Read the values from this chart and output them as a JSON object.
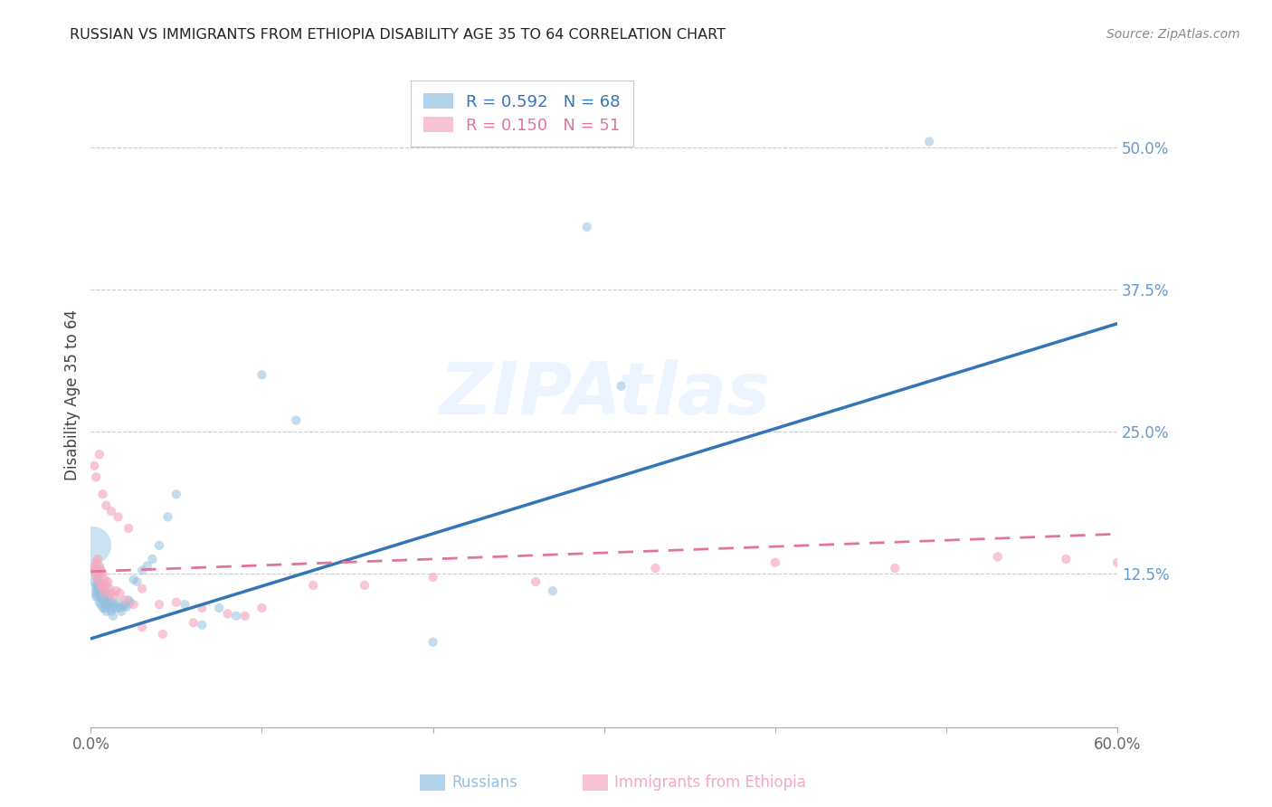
{
  "title": "RUSSIAN VS IMMIGRANTS FROM ETHIOPIA DISABILITY AGE 35 TO 64 CORRELATION CHART",
  "source": "Source: ZipAtlas.com",
  "ylabel": "Disability Age 35 to 64",
  "x_min": 0.0,
  "x_max": 0.6,
  "y_min": -0.01,
  "y_max": 0.575,
  "right_yticks": [
    0.125,
    0.25,
    0.375,
    0.5
  ],
  "right_yticklabels": [
    "12.5%",
    "25.0%",
    "37.5%",
    "50.0%"
  ],
  "bottom_xticks": [
    0.0,
    0.1,
    0.2,
    0.3,
    0.4,
    0.5,
    0.6
  ],
  "bottom_xticklabels": [
    "0.0%",
    "",
    "",
    "",
    "",
    "",
    "60.0%"
  ],
  "blue_legend_label": "R = 0.592   N = 68",
  "pink_legend_label": "R = 0.150   N = 51",
  "watermark": "ZIPAtlas",
  "blue_color": "#92c0e0",
  "pink_color": "#f5a8c0",
  "blue_line_color": "#3375b5",
  "pink_line_color": "#e07595",
  "russians_x": [
    0.001,
    0.002,
    0.002,
    0.003,
    0.003,
    0.003,
    0.003,
    0.004,
    0.004,
    0.004,
    0.004,
    0.005,
    0.005,
    0.005,
    0.005,
    0.005,
    0.006,
    0.006,
    0.006,
    0.006,
    0.007,
    0.007,
    0.007,
    0.007,
    0.008,
    0.008,
    0.008,
    0.009,
    0.009,
    0.009,
    0.01,
    0.01,
    0.011,
    0.011,
    0.012,
    0.012,
    0.013,
    0.013,
    0.014,
    0.015,
    0.016,
    0.017,
    0.018,
    0.019,
    0.02,
    0.021,
    0.022,
    0.023,
    0.025,
    0.027,
    0.03,
    0.033,
    0.036,
    0.04,
    0.045,
    0.05,
    0.055,
    0.065,
    0.075,
    0.085,
    0.1,
    0.12,
    0.2,
    0.27,
    0.29,
    0.31,
    0.49,
    0.001
  ],
  "russians_y": [
    0.13,
    0.125,
    0.118,
    0.115,
    0.112,
    0.108,
    0.105,
    0.12,
    0.115,
    0.11,
    0.105,
    0.13,
    0.125,
    0.115,
    0.108,
    0.1,
    0.118,
    0.112,
    0.105,
    0.098,
    0.115,
    0.108,
    0.102,
    0.095,
    0.11,
    0.102,
    0.095,
    0.108,
    0.1,
    0.092,
    0.105,
    0.098,
    0.102,
    0.095,
    0.1,
    0.092,
    0.095,
    0.088,
    0.098,
    0.095,
    0.1,
    0.095,
    0.092,
    0.096,
    0.098,
    0.096,
    0.102,
    0.1,
    0.12,
    0.118,
    0.128,
    0.132,
    0.138,
    0.15,
    0.175,
    0.195,
    0.098,
    0.08,
    0.095,
    0.088,
    0.3,
    0.26,
    0.065,
    0.11,
    0.43,
    0.29,
    0.505,
    0.15
  ],
  "russians_size": [
    55,
    55,
    55,
    55,
    55,
    55,
    55,
    55,
    55,
    55,
    55,
    55,
    55,
    55,
    55,
    55,
    55,
    55,
    55,
    55,
    55,
    55,
    55,
    55,
    55,
    55,
    55,
    55,
    55,
    55,
    55,
    55,
    55,
    55,
    55,
    55,
    55,
    55,
    55,
    55,
    55,
    55,
    55,
    55,
    55,
    55,
    55,
    55,
    55,
    55,
    55,
    55,
    55,
    55,
    55,
    55,
    55,
    55,
    55,
    55,
    55,
    55,
    55,
    55,
    55,
    55,
    55,
    900
  ],
  "ethiopia_x": [
    0.001,
    0.002,
    0.003,
    0.003,
    0.004,
    0.004,
    0.005,
    0.005,
    0.006,
    0.006,
    0.007,
    0.007,
    0.008,
    0.008,
    0.009,
    0.01,
    0.011,
    0.012,
    0.013,
    0.015,
    0.017,
    0.02,
    0.025,
    0.03,
    0.04,
    0.05,
    0.065,
    0.08,
    0.1,
    0.13,
    0.16,
    0.2,
    0.26,
    0.33,
    0.4,
    0.47,
    0.53,
    0.57,
    0.6,
    0.002,
    0.003,
    0.005,
    0.007,
    0.009,
    0.012,
    0.016,
    0.022,
    0.03,
    0.042,
    0.06,
    0.09
  ],
  "ethiopia_y": [
    0.13,
    0.128,
    0.135,
    0.122,
    0.138,
    0.125,
    0.132,
    0.118,
    0.128,
    0.115,
    0.125,
    0.112,
    0.12,
    0.108,
    0.115,
    0.118,
    0.112,
    0.108,
    0.105,
    0.11,
    0.108,
    0.102,
    0.098,
    0.112,
    0.098,
    0.1,
    0.095,
    0.09,
    0.095,
    0.115,
    0.115,
    0.122,
    0.118,
    0.13,
    0.135,
    0.13,
    0.14,
    0.138,
    0.135,
    0.22,
    0.21,
    0.23,
    0.195,
    0.185,
    0.18,
    0.175,
    0.165,
    0.078,
    0.072,
    0.082,
    0.088
  ],
  "ethiopia_size": [
    55,
    55,
    55,
    55,
    55,
    55,
    55,
    55,
    55,
    55,
    55,
    55,
    55,
    55,
    55,
    55,
    55,
    55,
    55,
    55,
    55,
    55,
    55,
    55,
    55,
    55,
    55,
    55,
    55,
    55,
    55,
    55,
    55,
    55,
    55,
    55,
    55,
    55,
    55,
    55,
    55,
    55,
    55,
    55,
    55,
    55,
    55,
    55,
    55,
    55,
    55
  ],
  "blue_trendline": {
    "x_start": 0.0,
    "y_start": 0.068,
    "x_end": 0.6,
    "y_end": 0.345
  },
  "pink_trendline": {
    "x_start": 0.0,
    "y_start": 0.127,
    "x_end": 0.6,
    "y_end": 0.16
  }
}
